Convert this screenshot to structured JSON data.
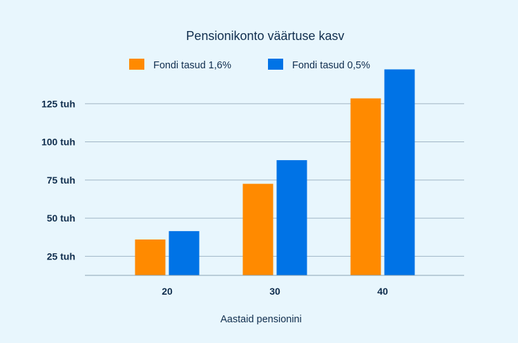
{
  "chart_data": {
    "type": "bar",
    "title": "Pensionikonto väärtuse kasv",
    "xlabel": "Aastaid pensionini",
    "ylabel": "",
    "categories": [
      "20",
      "30",
      "40"
    ],
    "series": [
      {
        "name": "Fondi tasud 1,6%",
        "color": "#ff8a00",
        "values": [
          36000,
          72500,
          128500
        ]
      },
      {
        "name": "Fondi tasud 0,5%",
        "color": "#0073e6",
        "values": [
          41500,
          88000,
          147500
        ]
      }
    ],
    "yticks": [
      25000,
      50000,
      75000,
      100000,
      125000
    ],
    "ytick_labels": [
      "25 tuh",
      "50 tuh",
      "75 tuh",
      "100 tuh",
      "125 tuh"
    ],
    "ylim": [
      12500,
      150000
    ],
    "grid": true,
    "legend_position": "top"
  }
}
